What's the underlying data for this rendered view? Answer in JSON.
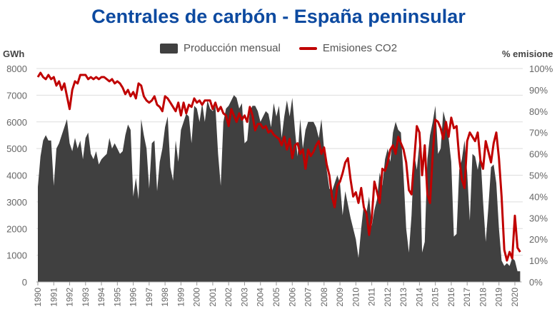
{
  "chart_data": {
    "type": "area+line",
    "title": "Centrales de carbón - España peninsular",
    "y_left_label": "GWh",
    "y_right_label": "% emisione",
    "y_left_lim": [
      0,
      8000
    ],
    "y_left_ticks": [
      "0",
      "1000",
      "2000",
      "3000",
      "4000",
      "5000",
      "6000",
      "7000",
      "8000"
    ],
    "y_right_lim": [
      0,
      100
    ],
    "y_right_ticks": [
      "0%",
      "10%",
      "20%",
      "30%",
      "40%",
      "50%",
      "60%",
      "70%",
      "80%",
      "90%",
      "100%"
    ],
    "x_ticks": [
      "1990",
      "1991",
      "1992",
      "1993",
      "1994",
      "1995",
      "1996",
      "1997",
      "1998",
      "1999",
      "2000",
      "2001",
      "2002",
      "2003",
      "2004",
      "2005",
      "2006",
      "2007",
      "2008",
      "2009",
      "2010",
      "2011",
      "2012",
      "2013",
      "2014",
      "2015",
      "2016",
      "2017",
      "2018",
      "2019",
      "2020"
    ],
    "grid": "horizontal",
    "legend": "top",
    "colors": {
      "production": "#404040",
      "emissions": "#c00000",
      "title": "#0d4aa0"
    },
    "months_sampled": [
      "01",
      "03",
      "05",
      "07",
      "09",
      "11"
    ],
    "series": [
      {
        "name": "Producción mensual",
        "type": "area",
        "axis": "left",
        "values": [
          3560,
          4700,
          5300,
          5500,
          5300,
          5300,
          3600,
          5000,
          5200,
          5500,
          5800,
          6100,
          5200,
          4900,
          5400,
          5000,
          5300,
          4600,
          5400,
          5600,
          4800,
          4600,
          4900,
          4400,
          4600,
          4700,
          4800,
          5400,
          5000,
          5200,
          5000,
          4800,
          4900,
          5500,
          5900,
          5700,
          3200,
          3900,
          3100,
          6100,
          5500,
          5000,
          3500,
          5200,
          5300,
          3400,
          4500,
          5000,
          5800,
          6200,
          4300,
          3800,
          5300,
          4500,
          5700,
          6000,
          6300,
          6200,
          5200,
          6600,
          6500,
          6000,
          6700,
          6000,
          6800,
          6500,
          6400,
          6600,
          4800,
          3600,
          6000,
          6500,
          6600,
          6800,
          7000,
          6900,
          6500,
          6700,
          5200,
          5300,
          6400,
          6600,
          6600,
          6400,
          6000,
          6200,
          6400,
          6300,
          5800,
          6700,
          6200,
          6600,
          5400,
          6200,
          6800,
          6200,
          6900,
          5700,
          4700,
          6100,
          5000,
          5700,
          6000,
          6000,
          6000,
          5800,
          5400,
          6100,
          5000,
          4200,
          3500,
          3400,
          3700,
          4000,
          3700,
          2500,
          3400,
          2900,
          2400,
          2000,
          1600,
          900,
          2000,
          2900,
          2600,
          3200,
          2100,
          2700,
          3100,
          4100,
          3600,
          4600,
          5000,
          4500,
          5600,
          6000,
          5700,
          5600,
          4000,
          2000,
          1100,
          2500,
          4800,
          4200,
          5200,
          1100,
          1500,
          4600,
          5500,
          6000,
          6600,
          4800,
          5000,
          6400,
          6000,
          5400,
          4500,
          1700,
          1800,
          4200,
          4600,
          5300,
          4100,
          2300,
          4800,
          4700,
          4200,
          4800,
          3000,
          1500,
          2800,
          4300,
          4400,
          3700,
          2000,
          800,
          600,
          700,
          600,
          900,
          800,
          400,
          400
        ]
      },
      {
        "name": "Emisiones CO2",
        "type": "line",
        "axis": "right",
        "values": [
          96,
          98,
          96,
          95,
          97,
          95,
          96,
          92,
          94,
          90,
          93,
          87,
          81,
          90,
          94,
          93,
          97,
          97,
          97,
          95,
          96,
          95,
          96,
          95,
          96,
          96,
          95,
          94,
          95,
          93,
          94,
          93,
          91,
          88,
          90,
          87,
          89,
          86,
          93,
          92,
          87,
          85,
          84,
          85,
          87,
          83,
          82,
          80,
          87,
          86,
          84,
          82,
          80,
          84,
          78,
          84,
          79,
          83,
          82,
          86,
          84,
          85,
          83,
          85,
          85,
          85,
          81,
          84,
          80,
          82,
          79,
          78,
          73,
          81,
          78,
          75,
          79,
          76,
          78,
          75,
          82,
          78,
          71,
          74,
          74,
          72,
          73,
          70,
          71,
          69,
          68,
          67,
          64,
          68,
          62,
          67,
          58,
          64,
          65,
          60,
          62,
          53,
          62,
          59,
          61,
          64,
          66,
          60,
          63,
          55,
          50,
          40,
          35,
          45,
          47,
          51,
          56,
          58,
          48,
          40,
          42,
          37,
          44,
          35,
          32,
          22,
          30,
          47,
          42,
          37,
          53,
          52,
          56,
          62,
          64,
          60,
          68,
          65,
          62,
          56,
          43,
          41,
          57,
          73,
          70,
          50,
          64,
          41,
          37,
          60,
          76,
          75,
          72,
          67,
          75,
          68,
          77,
          72,
          73,
          58,
          48,
          44,
          66,
          70,
          68,
          66,
          70,
          57,
          53,
          66,
          61,
          56,
          65,
          70,
          58,
          40,
          15,
          10,
          14,
          11,
          31,
          16,
          14
        ]
      }
    ]
  }
}
